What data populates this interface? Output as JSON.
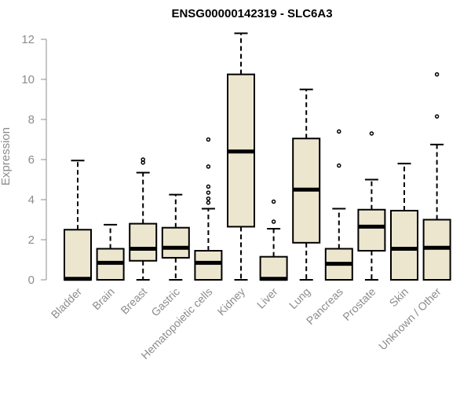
{
  "chart_data": {
    "type": "boxplot",
    "title": "ENSG00000142319 - SLC6A3",
    "xlabel": "",
    "ylabel": "Expression",
    "ylim": [
      0,
      12
    ],
    "yticks": [
      0,
      2,
      4,
      6,
      8,
      10,
      12
    ],
    "box_fill": "#ede6cf",
    "categories": [
      "Bladder",
      "Brain",
      "Breast",
      "Gastric",
      "Hematopoietic cells",
      "Kidney",
      "Liver",
      "Lung",
      "Pancreas",
      "Prostate",
      "Skin",
      "Unknown / Other"
    ],
    "boxes": [
      {
        "min": 0.0,
        "q1": 0.0,
        "median": 0.05,
        "q3": 2.5,
        "max": 5.95,
        "outliers": []
      },
      {
        "min": 0.0,
        "q1": 0.0,
        "median": 0.85,
        "q3": 1.55,
        "max": 2.75,
        "outliers": []
      },
      {
        "min": 0.0,
        "q1": 0.95,
        "median": 1.55,
        "q3": 2.8,
        "max": 5.35,
        "outliers": [
          5.85,
          6.0
        ]
      },
      {
        "min": 0.0,
        "q1": 1.1,
        "median": 1.6,
        "q3": 2.6,
        "max": 4.25,
        "outliers": []
      },
      {
        "min": 0.0,
        "q1": 0.0,
        "median": 0.85,
        "q3": 1.45,
        "max": 3.55,
        "outliers": [
          3.85,
          4.05,
          4.35,
          4.65,
          5.65,
          7.0
        ]
      },
      {
        "min": 0.0,
        "q1": 2.65,
        "median": 6.4,
        "q3": 10.25,
        "max": 12.3,
        "outliers": []
      },
      {
        "min": 0.0,
        "q1": 0.0,
        "median": 0.05,
        "q3": 1.15,
        "max": 2.55,
        "outliers": [
          2.9,
          3.9
        ]
      },
      {
        "min": 0.0,
        "q1": 1.85,
        "median": 4.5,
        "q3": 7.05,
        "max": 9.5,
        "outliers": []
      },
      {
        "min": 0.0,
        "q1": 0.0,
        "median": 0.8,
        "q3": 1.55,
        "max": 3.55,
        "outliers": [
          5.7,
          7.4
        ]
      },
      {
        "min": 0.0,
        "q1": 1.45,
        "median": 2.65,
        "q3": 3.5,
        "max": 5.0,
        "outliers": [
          7.3
        ]
      },
      {
        "min": 0.0,
        "q1": 0.0,
        "median": 1.55,
        "q3": 3.45,
        "max": 5.8,
        "outliers": []
      },
      {
        "min": 0.0,
        "q1": 0.0,
        "median": 1.6,
        "q3": 3.0,
        "max": 6.75,
        "outliers": [
          8.15,
          10.25
        ]
      }
    ]
  }
}
